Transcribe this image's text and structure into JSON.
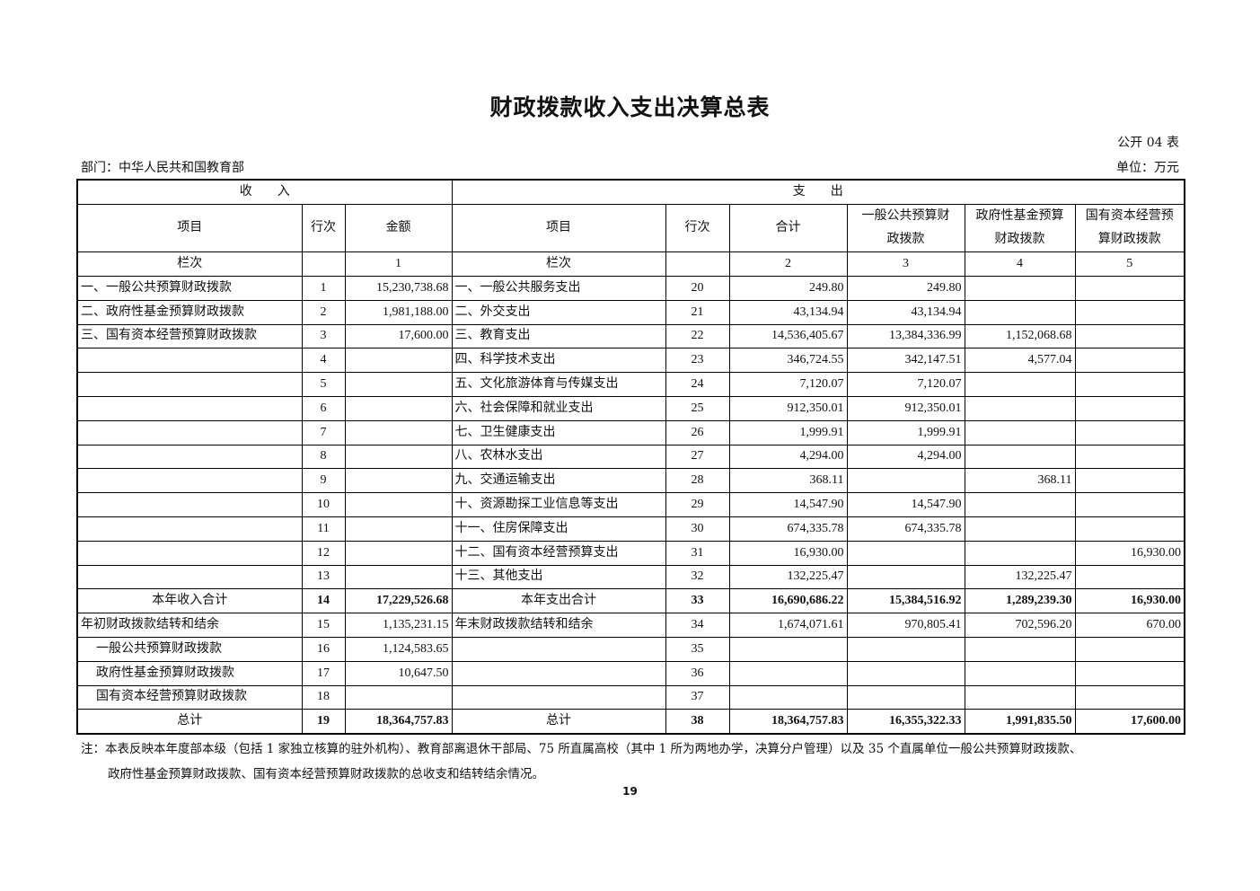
{
  "title": "财政拨款收入支出决算总表",
  "table_code": "公开 04 表",
  "department": "部门：中华人民共和国教育部",
  "unit": "单位：万元",
  "headers": {
    "income": "收　　入",
    "expense": "支　　出",
    "item": "项目",
    "line": "行次",
    "amount": "金额",
    "total": "合计",
    "general": "一般公共预算财政拨款",
    "fund": "政府性基金预算财政拨款",
    "state": "国有资本经营预算财政拨款",
    "column_label": "栏次",
    "col_amount": "1",
    "col_total": "2",
    "col_general": "3",
    "col_fund": "4",
    "col_state": "5"
  },
  "rows": [
    {
      "type": "normal",
      "in_item": "一、一般公共预算财政拨款",
      "in_line": "1",
      "in_amount": "15,230,738.68",
      "out_item": "一、一般公共服务支出",
      "out_line": "20",
      "total": "249.80",
      "general": "249.80",
      "fund": "",
      "state": ""
    },
    {
      "type": "normal",
      "in_item": "二、政府性基金预算财政拨款",
      "in_line": "2",
      "in_amount": "1,981,188.00",
      "out_item": "二、外交支出",
      "out_line": "21",
      "total": "43,134.94",
      "general": "43,134.94",
      "fund": "",
      "state": ""
    },
    {
      "type": "normal",
      "in_item": "三、国有资本经营预算财政拨款",
      "in_line": "3",
      "in_amount": "17,600.00",
      "out_item": "三、教育支出",
      "out_line": "22",
      "total": "14,536,405.67",
      "general": "13,384,336.99",
      "fund": "1,152,068.68",
      "state": ""
    },
    {
      "type": "normal",
      "in_item": "",
      "in_line": "4",
      "in_amount": "",
      "out_item": "四、科学技术支出",
      "out_line": "23",
      "total": "346,724.55",
      "general": "342,147.51",
      "fund": "4,577.04",
      "state": ""
    },
    {
      "type": "normal",
      "in_item": "",
      "in_line": "5",
      "in_amount": "",
      "out_item": "五、文化旅游体育与传媒支出",
      "out_line": "24",
      "total": "7,120.07",
      "general": "7,120.07",
      "fund": "",
      "state": ""
    },
    {
      "type": "normal",
      "in_item": "",
      "in_line": "6",
      "in_amount": "",
      "out_item": "六、社会保障和就业支出",
      "out_line": "25",
      "total": "912,350.01",
      "general": "912,350.01",
      "fund": "",
      "state": ""
    },
    {
      "type": "normal",
      "in_item": "",
      "in_line": "7",
      "in_amount": "",
      "out_item": "七、卫生健康支出",
      "out_line": "26",
      "total": "1,999.91",
      "general": "1,999.91",
      "fund": "",
      "state": ""
    },
    {
      "type": "normal",
      "in_item": "",
      "in_line": "8",
      "in_amount": "",
      "out_item": "八、农林水支出",
      "out_line": "27",
      "total": "4,294.00",
      "general": "4,294.00",
      "fund": "",
      "state": ""
    },
    {
      "type": "normal",
      "in_item": "",
      "in_line": "9",
      "in_amount": "",
      "out_item": "九、交通运输支出",
      "out_line": "28",
      "total": "368.11",
      "general": "",
      "fund": "368.11",
      "state": ""
    },
    {
      "type": "normal",
      "in_item": "",
      "in_line": "10",
      "in_amount": "",
      "out_item": "十、资源勘探工业信息等支出",
      "out_line": "29",
      "total": "14,547.90",
      "general": "14,547.90",
      "fund": "",
      "state": ""
    },
    {
      "type": "normal",
      "in_item": "",
      "in_line": "11",
      "in_amount": "",
      "out_item": "十一、住房保障支出",
      "out_line": "30",
      "total": "674,335.78",
      "general": "674,335.78",
      "fund": "",
      "state": ""
    },
    {
      "type": "normal",
      "in_item": "",
      "in_line": "12",
      "in_amount": "",
      "out_item": "十二、国有资本经营预算支出",
      "out_line": "31",
      "total": "16,930.00",
      "general": "",
      "fund": "",
      "state": "16,930.00"
    },
    {
      "type": "normal",
      "in_item": "",
      "in_line": "13",
      "in_amount": "",
      "out_item": "十三、其他支出",
      "out_line": "32",
      "total": "132,225.47",
      "general": "",
      "fund": "132,225.47",
      "state": ""
    },
    {
      "type": "total",
      "in_item": "本年收入合计",
      "in_line": "14",
      "in_amount": "17,229,526.68",
      "out_item": "本年支出合计",
      "out_line": "33",
      "total": "16,690,686.22",
      "general": "15,384,516.92",
      "fund": "1,289,239.30",
      "state": "16,930.00"
    },
    {
      "type": "normal",
      "in_item": "年初财政拨款结转和结余",
      "in_line": "15",
      "in_amount": "1,135,231.15",
      "out_item": "年末财政拨款结转和结余",
      "out_line": "34",
      "total": "1,674,071.61",
      "general": "970,805.41",
      "fund": "702,596.20",
      "state": "670.00"
    },
    {
      "type": "sub",
      "in_item": "一般公共预算财政拨款",
      "in_line": "16",
      "in_amount": "1,124,583.65",
      "out_item": "",
      "out_line": "35",
      "total": "",
      "general": "",
      "fund": "",
      "state": ""
    },
    {
      "type": "sub",
      "in_item": "政府性基金预算财政拨款",
      "in_line": "17",
      "in_amount": "10,647.50",
      "out_item": "",
      "out_line": "36",
      "total": "",
      "general": "",
      "fund": "",
      "state": ""
    },
    {
      "type": "sub",
      "in_item": "国有资本经营预算财政拨款",
      "in_line": "18",
      "in_amount": "",
      "out_item": "",
      "out_line": "37",
      "total": "",
      "general": "",
      "fund": "",
      "state": ""
    },
    {
      "type": "total",
      "in_item": "总计",
      "in_line": "19",
      "in_amount": "18,364,757.83",
      "out_item": "总计",
      "out_line": "38",
      "total": "18,364,757.83",
      "general": "16,355,322.33",
      "fund": "1,991,835.50",
      "state": "17,600.00"
    }
  ],
  "note_line1": "注：本表反映本年度部本级（包括 1 家独立核算的驻外机构）、教育部离退休干部局、75 所直属高校（其中 1 所为两地办学，决算分户管理）以及 35 个直属单位一般公共预算财政拨款、",
  "note_line2": "政府性基金预算财政拨款、国有资本经营预算财政拨款的总收支和结转结余情况。",
  "page_number": "19"
}
